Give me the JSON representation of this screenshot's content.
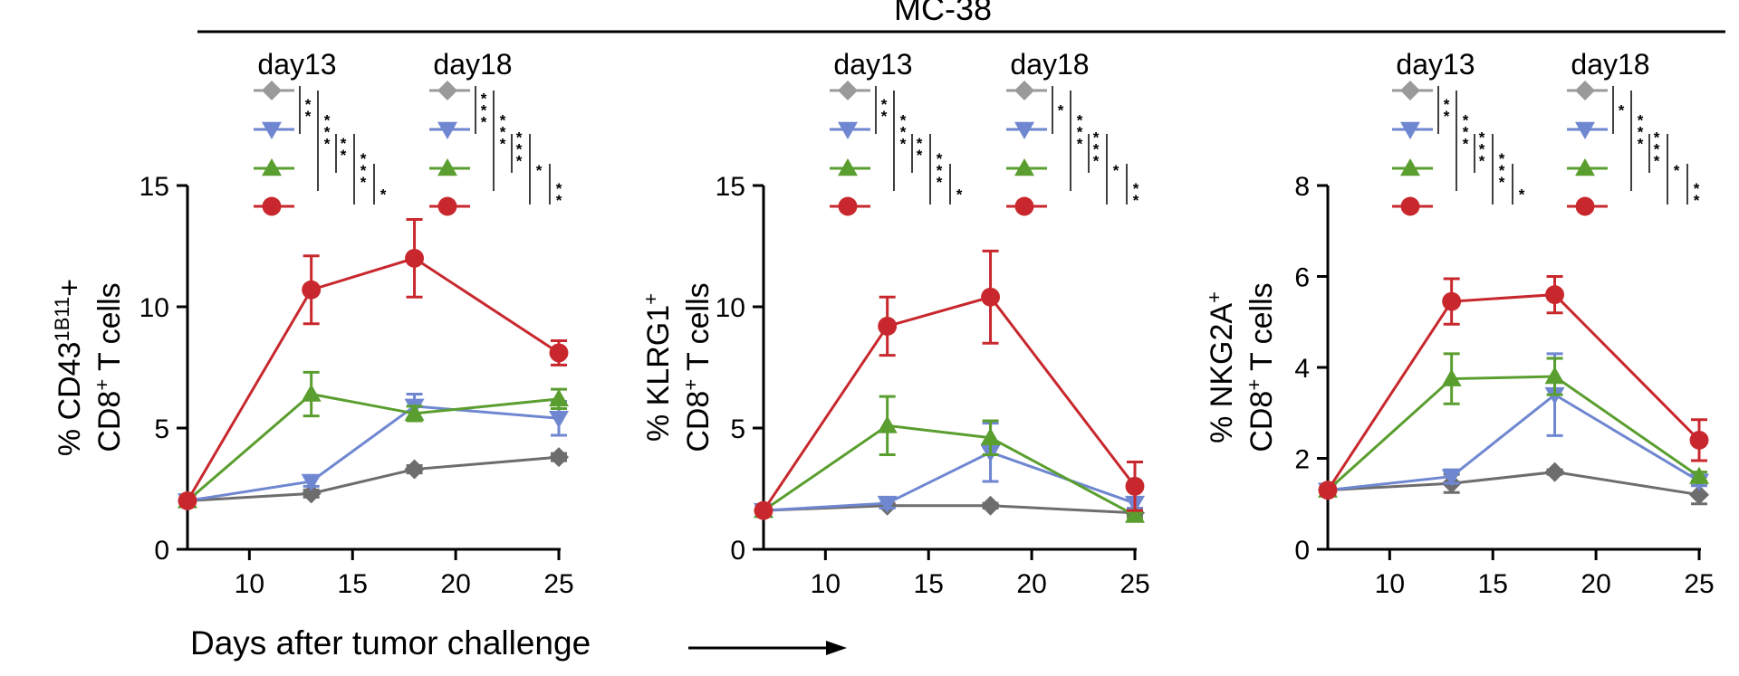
{
  "figure_title": "MC-38",
  "xlabel": "Days after tumor challenge",
  "colors": {
    "gray": "#6d6d6d",
    "gray_light": "#9a9a9a",
    "blue": "#6f87d0",
    "green": "#5a9e2f",
    "red": "#c8282d"
  },
  "chart_data": [
    {
      "type": "line",
      "title": "",
      "ylabel_line1": "% CD43",
      "ylabel_sup": "1B11",
      "ylabel_tail": "+",
      "ylabel_line2": "CD8",
      "ylabel_line2_sup": "+",
      "ylabel_line2_tail": " T cells",
      "xlabel": "Days after tumor challenge",
      "xlim": [
        7,
        25
      ],
      "ylim": [
        0,
        15
      ],
      "xticks": [
        "10",
        "15",
        "20",
        "25"
      ],
      "yticks": [
        "0",
        "5",
        "10",
        "15"
      ],
      "x": [
        7,
        13,
        18,
        25
      ],
      "series": [
        {
          "name": "gray",
          "values": [
            2.0,
            2.3,
            3.3,
            3.8
          ],
          "errors": [
            0.1,
            0.15,
            0.15,
            0.15
          ]
        },
        {
          "name": "blue",
          "values": [
            2.0,
            2.8,
            5.9,
            5.4
          ],
          "errors": [
            0.1,
            0.2,
            0.5,
            0.7
          ]
        },
        {
          "name": "green",
          "values": [
            2.0,
            6.4,
            5.6,
            6.2
          ],
          "errors": [
            0.1,
            0.9,
            0.3,
            0.4
          ]
        },
        {
          "name": "red",
          "values": [
            2.0,
            10.7,
            12.0,
            8.1
          ],
          "errors": [
            0.1,
            1.4,
            1.6,
            0.5
          ]
        }
      ],
      "legend": {
        "day13": {
          "label": "day13",
          "adjacent": [
            "**",
            "*",
            "*"
          ],
          "spans": [
            "***",
            "**",
            "***",
            "*"
          ]
        },
        "day18": {
          "label": "day18",
          "adjacent": [
            "***",
            "*",
            "*"
          ],
          "spans": [
            "***",
            "***",
            "*",
            "**"
          ]
        }
      }
    },
    {
      "type": "line",
      "title": "",
      "ylabel_line1": "% KLRG1",
      "ylabel_sup": "+",
      "ylabel_tail": "",
      "ylabel_line2": "CD8",
      "ylabel_line2_sup": "+",
      "ylabel_line2_tail": " T cells",
      "xlabel": "Days after tumor challenge",
      "xlim": [
        7,
        25
      ],
      "ylim": [
        0,
        15
      ],
      "xticks": [
        "10",
        "15",
        "20",
        "25"
      ],
      "yticks": [
        "0",
        "5",
        "10",
        "15"
      ],
      "x": [
        7,
        13,
        18,
        25
      ],
      "series": [
        {
          "name": "gray",
          "values": [
            1.6,
            1.8,
            1.8,
            1.5
          ],
          "errors": [
            0.1,
            0.1,
            0.1,
            0.1
          ]
        },
        {
          "name": "blue",
          "values": [
            1.6,
            1.9,
            4.0,
            1.9
          ],
          "errors": [
            0.1,
            0.2,
            1.2,
            0.2
          ]
        },
        {
          "name": "green",
          "values": [
            1.6,
            5.1,
            4.6,
            1.4
          ],
          "errors": [
            0.1,
            1.2,
            0.7,
            0.1
          ]
        },
        {
          "name": "red",
          "values": [
            1.6,
            9.2,
            10.4,
            2.6
          ],
          "errors": [
            0.1,
            1.2,
            1.9,
            1.0
          ]
        }
      ],
      "legend": {
        "day13": {
          "label": "day13",
          "adjacent": [
            "**",
            "*",
            "*"
          ],
          "spans": [
            "***",
            "**",
            "***",
            "*"
          ]
        },
        "day18": {
          "label": "day18",
          "adjacent": [
            "*",
            "*",
            "*"
          ],
          "spans": [
            "***",
            "***",
            "*",
            "**"
          ]
        }
      }
    },
    {
      "type": "line",
      "title": "",
      "ylabel_line1": "% NKG2A",
      "ylabel_sup": "+",
      "ylabel_tail": "",
      "ylabel_line2": "CD8",
      "ylabel_line2_sup": "+",
      "ylabel_line2_tail": " T cells",
      "xlabel": "Days after tumor challenge",
      "xlim": [
        7,
        25
      ],
      "ylim": [
        0,
        8
      ],
      "xticks": [
        "10",
        "15",
        "20",
        "25"
      ],
      "yticks": [
        "0",
        "2",
        "4",
        "6",
        "8"
      ],
      "x": [
        7,
        13,
        18,
        25
      ],
      "series": [
        {
          "name": "gray",
          "values": [
            1.3,
            1.45,
            1.7,
            1.2
          ],
          "errors": [
            0.05,
            0.2,
            0.05,
            0.2
          ]
        },
        {
          "name": "blue",
          "values": [
            1.3,
            1.6,
            3.4,
            1.5
          ],
          "errors": [
            0.05,
            0.15,
            0.9,
            0.1
          ]
        },
        {
          "name": "green",
          "values": [
            1.3,
            3.75,
            3.8,
            1.6
          ],
          "errors": [
            0.05,
            0.55,
            0.4,
            0.1
          ]
        },
        {
          "name": "red",
          "values": [
            1.3,
            5.45,
            5.6,
            2.4
          ],
          "errors": [
            0.05,
            0.5,
            0.4,
            0.45
          ]
        }
      ],
      "legend": {
        "day13": {
          "label": "day13",
          "adjacent": [
            "**",
            "*",
            "*"
          ],
          "spans": [
            "***",
            "***",
            "***",
            "*"
          ]
        },
        "day18": {
          "label": "day18",
          "adjacent": [
            "*",
            "*",
            "*"
          ],
          "spans": [
            "***",
            "***",
            "*",
            "**"
          ]
        }
      }
    }
  ]
}
